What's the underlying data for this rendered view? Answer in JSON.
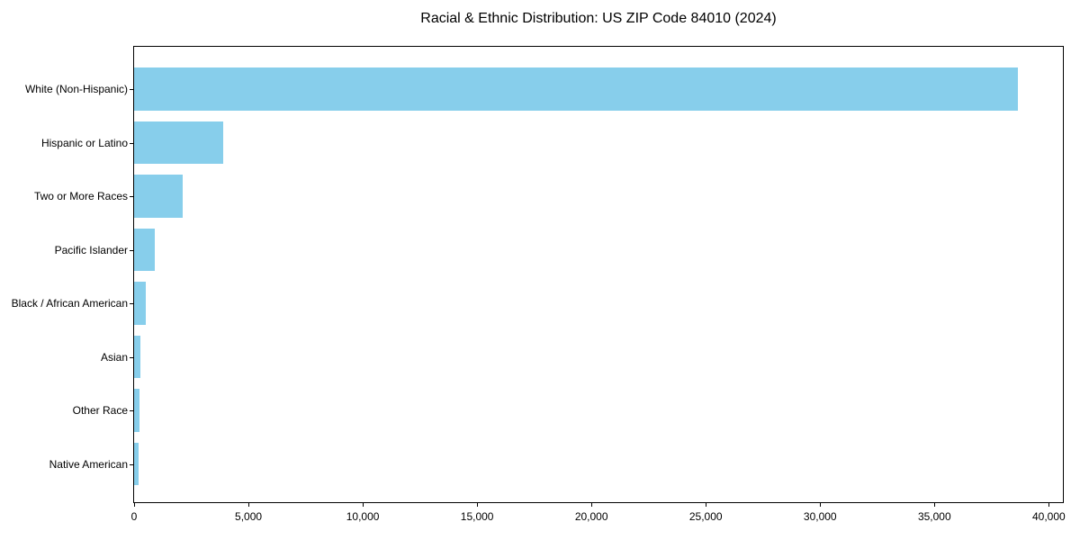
{
  "chart_data": {
    "type": "bar",
    "orientation": "horizontal",
    "title": "Racial & Ethnic Distribution: US ZIP Code 84010 (2024)",
    "categories": [
      "White (Non-Hispanic)",
      "Hispanic or Latino",
      "Two or More Races",
      "Pacific Islander",
      "Black / African American",
      "Asian",
      "Other Race",
      "Native American"
    ],
    "values": [
      38650,
      3890,
      2120,
      890,
      500,
      295,
      230,
      180
    ],
    "xlabel": "",
    "ylabel": "",
    "xlim": [
      0,
      40616
    ],
    "x_ticks": [
      0,
      5000,
      10000,
      15000,
      20000,
      25000,
      30000,
      35000,
      40000
    ],
    "x_tick_labels": [
      "0",
      "5,000",
      "10,000",
      "15,000",
      "20,000",
      "25,000",
      "30,000",
      "35,000",
      "40,000"
    ],
    "bar_color": "#87CEEB",
    "axis_color": "#000000",
    "text_color": "#000000",
    "background_color": "#ffffff",
    "grid": false,
    "legend": false
  }
}
